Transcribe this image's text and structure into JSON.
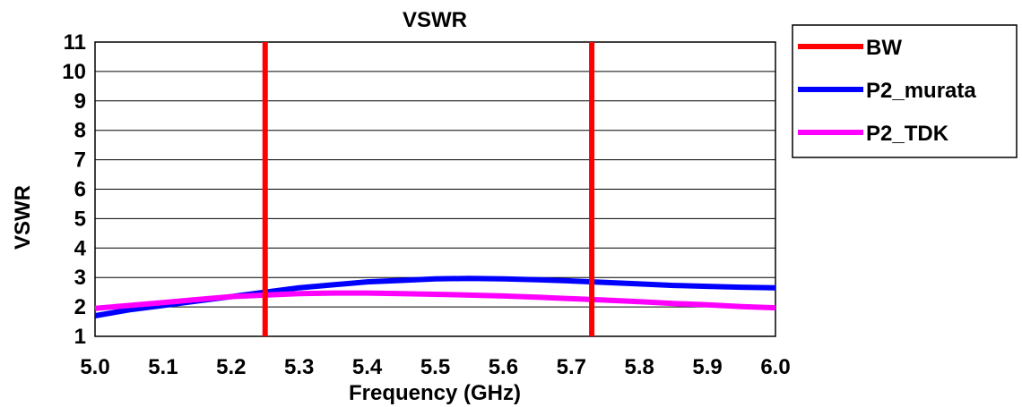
{
  "chart_data": {
    "type": "line",
    "title": "VSWR",
    "xlabel": "Frequency (GHz)",
    "ylabel": "VSWR",
    "xlim": [
      5.0,
      6.0
    ],
    "ylim": [
      1,
      11
    ],
    "x_ticks": [
      "5.0",
      "5.1",
      "5.2",
      "5.3",
      "5.4",
      "5.5",
      "5.6",
      "5.7",
      "5.8",
      "5.9",
      "6.0"
    ],
    "y_ticks": [
      "1",
      "2",
      "3",
      "4",
      "5",
      "6",
      "7",
      "8",
      "9",
      "10",
      "11"
    ],
    "grid": "horizontal",
    "legend_position": "right",
    "series": [
      {
        "name": "BW",
        "color": "#ff0000",
        "kind": "vertical-markers",
        "x": [
          5.25,
          5.73
        ]
      },
      {
        "name": "P2_murata",
        "color": "#0000ff",
        "x": [
          5.0,
          5.05,
          5.1,
          5.15,
          5.2,
          5.25,
          5.3,
          5.35,
          5.4,
          5.45,
          5.5,
          5.55,
          5.6,
          5.65,
          5.7,
          5.75,
          5.8,
          5.85,
          5.9,
          5.95,
          6.0
        ],
        "y": [
          1.7,
          1.9,
          2.05,
          2.2,
          2.35,
          2.5,
          2.65,
          2.75,
          2.85,
          2.9,
          2.95,
          2.97,
          2.95,
          2.92,
          2.88,
          2.83,
          2.78,
          2.73,
          2.7,
          2.67,
          2.65
        ]
      },
      {
        "name": "P2_TDK",
        "color": "#ff00ff",
        "x": [
          5.0,
          5.05,
          5.1,
          5.15,
          5.2,
          5.25,
          5.3,
          5.35,
          5.4,
          5.45,
          5.5,
          5.55,
          5.6,
          5.65,
          5.7,
          5.75,
          5.8,
          5.85,
          5.9,
          5.95,
          6.0
        ],
        "y": [
          1.95,
          2.05,
          2.15,
          2.25,
          2.35,
          2.4,
          2.45,
          2.47,
          2.47,
          2.45,
          2.43,
          2.4,
          2.37,
          2.33,
          2.28,
          2.23,
          2.18,
          2.12,
          2.07,
          2.01,
          1.97
        ]
      }
    ]
  }
}
